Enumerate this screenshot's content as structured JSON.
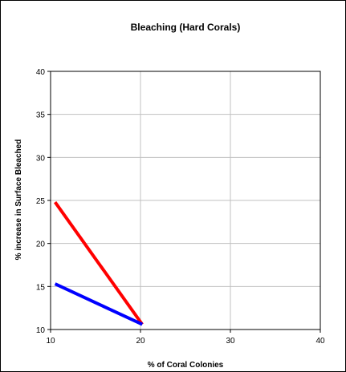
{
  "chart_data": {
    "type": "line",
    "title": "Bleaching (Hard Corals)",
    "xlabel": "% of Coral Colonies",
    "ylabel": "% increase in Surface Bleached",
    "xlim": [
      10,
      40
    ],
    "ylim": [
      10,
      40
    ],
    "x_ticks": [
      10,
      20,
      30,
      40
    ],
    "y_ticks": [
      10,
      15,
      20,
      25,
      30,
      35,
      40
    ],
    "grid": true,
    "legend": "none",
    "series": [
      {
        "color": "#ff0000",
        "points": [
          [
            10.5,
            24.8
          ],
          [
            20.2,
            10.6
          ]
        ]
      },
      {
        "color": "#0000ff",
        "points": [
          [
            10.5,
            15.3
          ],
          [
            20.2,
            10.6
          ]
        ]
      }
    ]
  }
}
